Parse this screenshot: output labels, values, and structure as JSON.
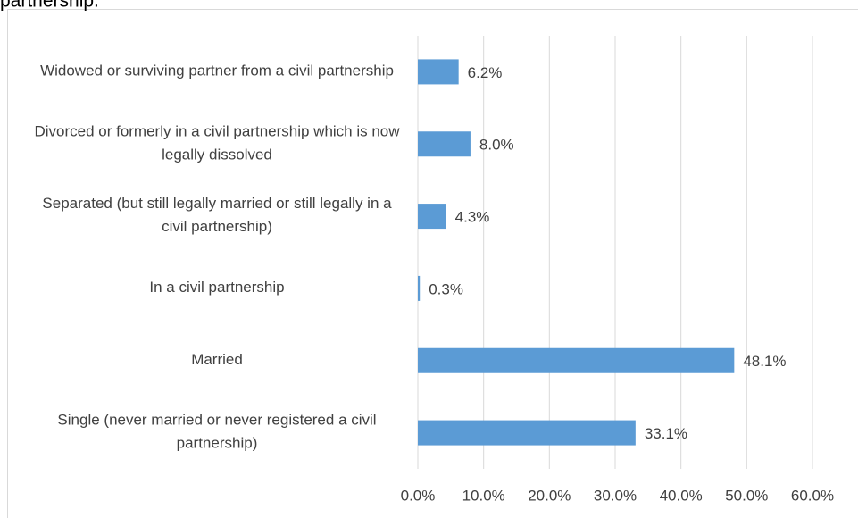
{
  "chart_data": {
    "type": "bar",
    "orientation": "horizontal",
    "title": "partnership.",
    "categories": [
      "Widowed or surviving partner from a civil partnership",
      "Divorced or formerly in a civil partnership which is now legally dissolved",
      "Separated (but still legally married or still legally in a civil partnership)",
      "In a civil partnership",
      "Married",
      "Single (never married or never registered a civil partnership)"
    ],
    "values": [
      6.2,
      8.0,
      4.3,
      0.3,
      48.1,
      33.1
    ],
    "value_labels": [
      "6.2%",
      "8.0%",
      "4.3%",
      "0.3%",
      "48.1%",
      "33.1%"
    ],
    "color": "#5b9bd5",
    "xlim": [
      0,
      60
    ],
    "xticks": [
      {
        "value": 0,
        "label": "0.0%"
      },
      {
        "value": 10,
        "label": "10.0%"
      },
      {
        "value": 20,
        "label": "20.0%"
      },
      {
        "value": 30,
        "label": "30.0%"
      },
      {
        "value": 40,
        "label": "40.0%"
      },
      {
        "value": 50,
        "label": "50.0%"
      },
      {
        "value": 60,
        "label": "60.0%"
      }
    ],
    "grid": true
  }
}
